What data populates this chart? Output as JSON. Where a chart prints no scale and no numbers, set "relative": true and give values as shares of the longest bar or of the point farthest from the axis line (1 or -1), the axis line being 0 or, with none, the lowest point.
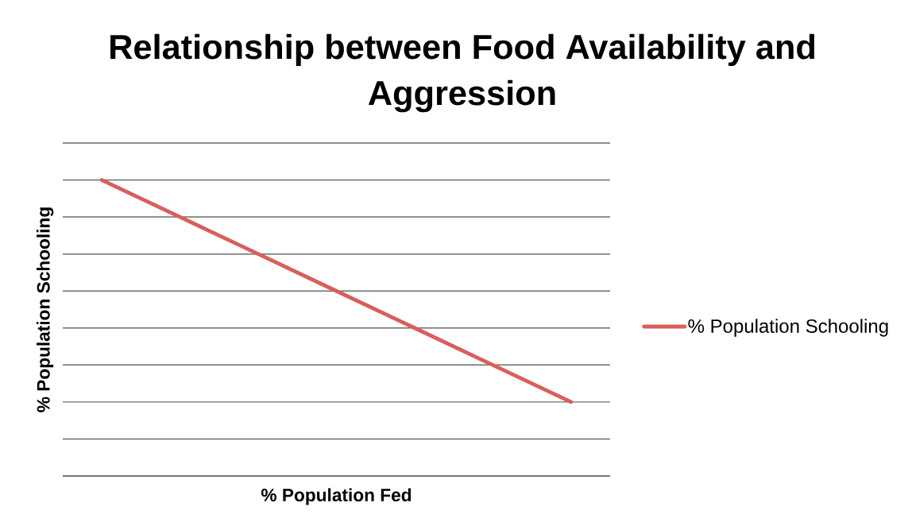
{
  "chart_data": {
    "type": "line",
    "title": "Relationship between Food Availability and Aggression",
    "xlabel": "% Population Fed",
    "ylabel": "% Population Schooling",
    "categories": [
      null,
      null,
      null,
      null,
      null,
      null,
      null
    ],
    "series": [
      {
        "name": "% Population Schooling",
        "color": "#d85f5c",
        "values": [
          1,
          0.875,
          0.75,
          0.625,
          0.5,
          0.375,
          0.25
        ]
      }
    ],
    "relative": true,
    "grid": "y",
    "legend": "right",
    "marker": "none",
    "line_style": "solid"
  }
}
